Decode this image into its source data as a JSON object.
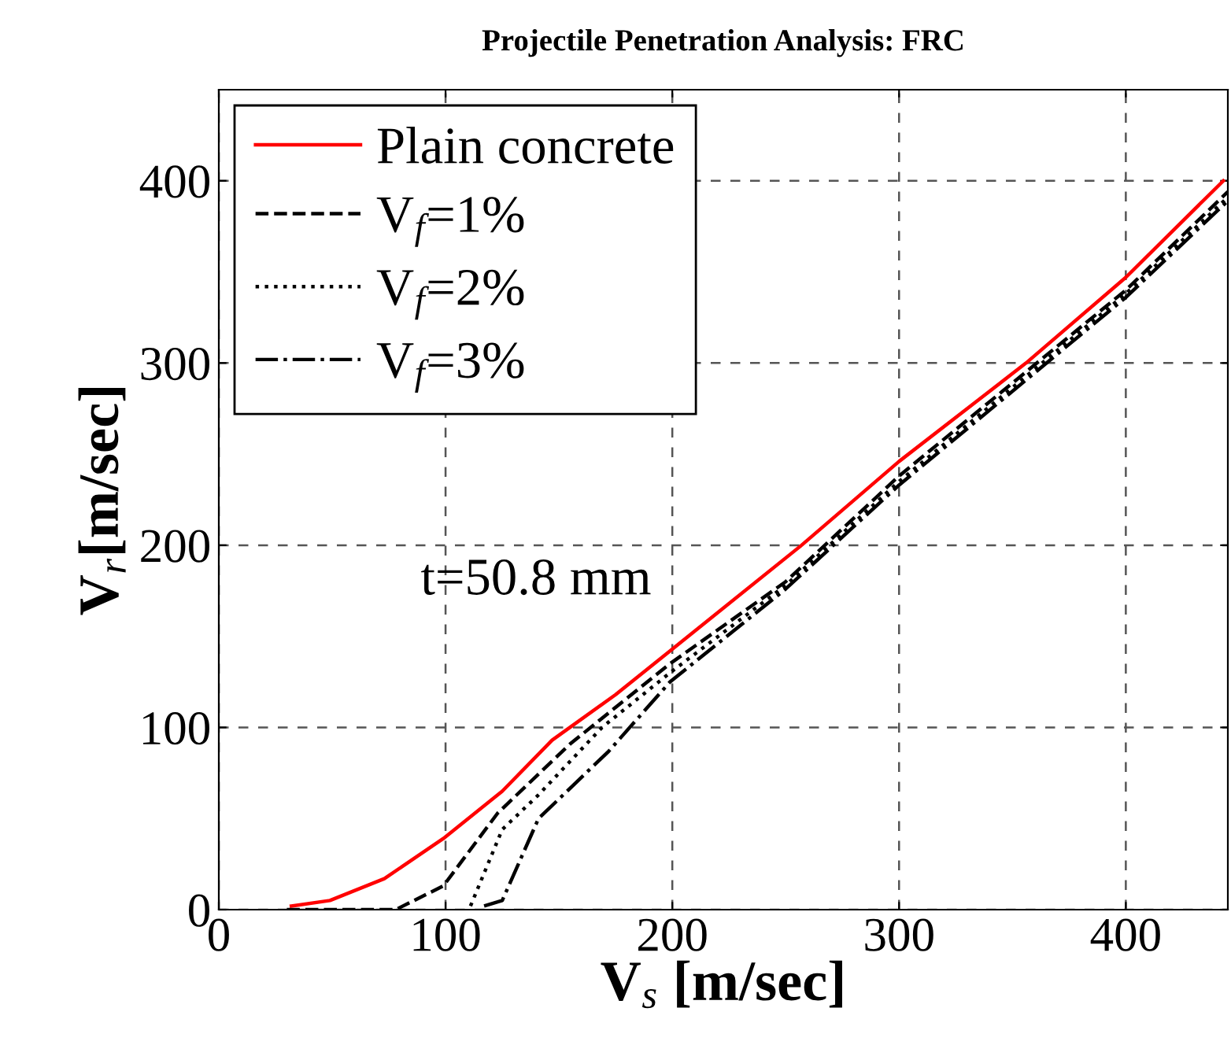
{
  "chart_data": {
    "type": "line",
    "title": "Projectile Penetration Analysis: FRC",
    "xlabel": "V$_{s}$ [m/sec]",
    "ylabel": "V$_{r}$[m/sec]",
    "annotations": [
      "t=50.8 mm"
    ],
    "xlim": [
      0,
      445
    ],
    "ylim": [
      0,
      450
    ],
    "xticks": [
      0,
      100,
      200,
      300,
      400
    ],
    "yticks": [
      0,
      100,
      200,
      300,
      400
    ],
    "grid": true,
    "legend": "top left",
    "series": [
      {
        "name": "Plain concrete",
        "color": "#ff0000",
        "line_style": "solid",
        "x": [
          32,
          49,
          73,
          99,
          125,
          147,
          175,
          199,
          257,
          300,
          356,
          400,
          443
        ],
        "values": [
          2,
          5,
          17,
          39,
          65,
          93,
          118,
          142,
          200,
          246,
          300,
          347,
          400
        ]
      },
      {
        "name": "V$_{f}$=1%",
        "color": "#000000",
        "line_style": "dashed",
        "x": [
          30,
          78,
          99,
          123,
          155,
          199,
          250,
          300,
          400,
          445
        ],
        "values": [
          0,
          0,
          13,
          53,
          91,
          135,
          180,
          238,
          340,
          394
        ]
      },
      {
        "name": "V$_{f}$=2%",
        "color": "#000000",
        "line_style": "dotted",
        "x": [
          111,
          125,
          141,
          169,
          199,
          250,
          300,
          400,
          445
        ],
        "values": [
          2,
          44,
          63,
          100,
          130,
          178,
          235,
          338,
          391
        ]
      },
      {
        "name": "V$_{f}$=3%",
        "color": "#000000",
        "line_style": "dashdot",
        "x": [
          117,
          125,
          141,
          172,
          199,
          250,
          300,
          400,
          445
        ],
        "values": [
          2,
          5,
          50,
          87,
          125,
          176,
          233,
          336,
          389
        ]
      }
    ]
  }
}
